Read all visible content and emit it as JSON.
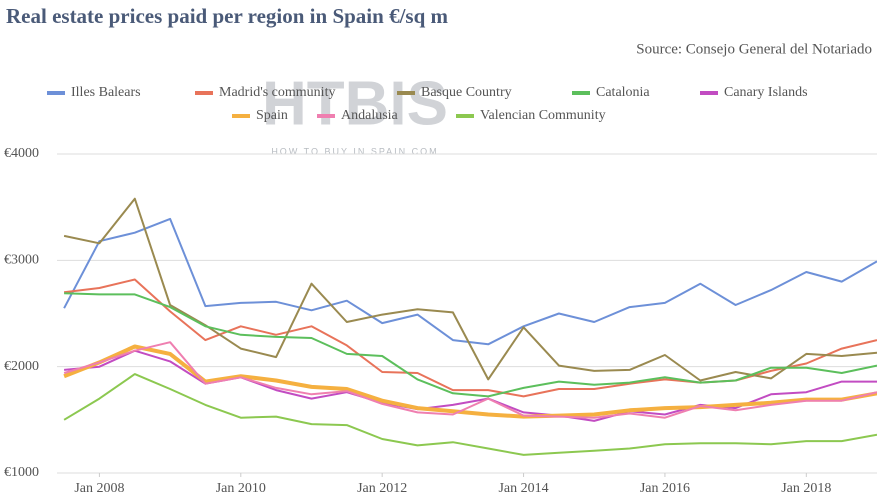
{
  "chart_data": {
    "type": "line",
    "title": "Real estate prices paid per region in Spain €/sq m",
    "source": "Source: Consejo General del Notariado",
    "watermark": "HTBIS",
    "watermark_sub": "HOW TO BUY IN SPAIN.COM",
    "x": [
      2007.5,
      2008,
      2008.5,
      2009,
      2009.5,
      2010,
      2010.5,
      2011,
      2011.5,
      2012,
      2012.5,
      2013,
      2013.5,
      2014,
      2014.5,
      2015,
      2015.5,
      2016,
      2016.5,
      2017,
      2017.5,
      2018,
      2018.5,
      2019
    ],
    "xlim": [
      2007.4,
      2019
    ],
    "xticks": [
      {
        "value": 2008,
        "label": "Jan 2008"
      },
      {
        "value": 2010,
        "label": "Jan 2010"
      },
      {
        "value": 2012,
        "label": "Jan 2012"
      },
      {
        "value": 2014,
        "label": "Jan 2014"
      },
      {
        "value": 2016,
        "label": "Jan 2016"
      },
      {
        "value": 2018,
        "label": "Jan 2018"
      }
    ],
    "ylim": [
      1000,
      4000
    ],
    "yticks": [
      {
        "value": 1000,
        "label": "€1000"
      },
      {
        "value": 2000,
        "label": "€2000"
      },
      {
        "value": 3000,
        "label": "€3000"
      },
      {
        "value": 4000,
        "label": "€4000"
      }
    ],
    "grid": true,
    "series": [
      {
        "name": "Illes Balears",
        "color": "#6d90d8",
        "values": [
          2550,
          3180,
          3260,
          3390,
          2570,
          2600,
          2610,
          2530,
          2620,
          2410,
          2490,
          2250,
          2210,
          2380,
          2500,
          2420,
          2560,
          2600,
          2780,
          2580,
          2720,
          2890,
          2800,
          2990
        ]
      },
      {
        "name": "Madrid's community",
        "color": "#e8735a",
        "values": [
          2700,
          2740,
          2820,
          2520,
          2250,
          2380,
          2300,
          2380,
          2200,
          1950,
          1940,
          1780,
          1780,
          1720,
          1790,
          1790,
          1840,
          1880,
          1850,
          1870,
          1960,
          2030,
          2170,
          2250
        ]
      },
      {
        "name": "Basque Country",
        "color": "#9a8a50",
        "values": [
          3230,
          3160,
          3580,
          2580,
          2390,
          2170,
          2090,
          2780,
          2420,
          2490,
          2540,
          2510,
          1880,
          2370,
          2010,
          1960,
          1970,
          2110,
          1870,
          1950,
          1890,
          2120,
          2100,
          2130
        ]
      },
      {
        "name": "Catalonia",
        "color": "#5cbf5c",
        "values": [
          2690,
          2680,
          2680,
          2560,
          2380,
          2300,
          2280,
          2270,
          2120,
          2100,
          1880,
          1750,
          1720,
          1800,
          1860,
          1830,
          1850,
          1900,
          1850,
          1870,
          1990,
          1990,
          1940,
          2010
        ]
      },
      {
        "name": "Canary Islands",
        "color": "#c24cc2",
        "values": [
          1970,
          2000,
          2150,
          2050,
          1840,
          1900,
          1780,
          1700,
          1760,
          1660,
          1600,
          1640,
          1700,
          1570,
          1540,
          1490,
          1580,
          1550,
          1640,
          1610,
          1740,
          1760,
          1860,
          1860
        ]
      },
      {
        "name": "Spain",
        "color": "#f5b040",
        "line_width": 4,
        "values": [
          1910,
          2040,
          2190,
          2120,
          1860,
          1910,
          1870,
          1810,
          1790,
          1680,
          1610,
          1580,
          1550,
          1530,
          1540,
          1550,
          1590,
          1610,
          1620,
          1640,
          1660,
          1690,
          1690,
          1750
        ]
      },
      {
        "name": "Andalusia",
        "color": "#ef7fb0",
        "values": [
          1940,
          2040,
          2150,
          2230,
          1840,
          1900,
          1800,
          1740,
          1770,
          1650,
          1570,
          1550,
          1700,
          1540,
          1530,
          1520,
          1560,
          1520,
          1630,
          1590,
          1640,
          1680,
          1680,
          1760
        ]
      },
      {
        "name": "Valencian Community",
        "color": "#8cc850",
        "values": [
          1500,
          1700,
          1930,
          1790,
          1640,
          1520,
          1530,
          1460,
          1450,
          1320,
          1260,
          1290,
          1230,
          1170,
          1190,
          1210,
          1230,
          1270,
          1280,
          1280,
          1270,
          1300,
          1300,
          1360
        ]
      }
    ]
  }
}
